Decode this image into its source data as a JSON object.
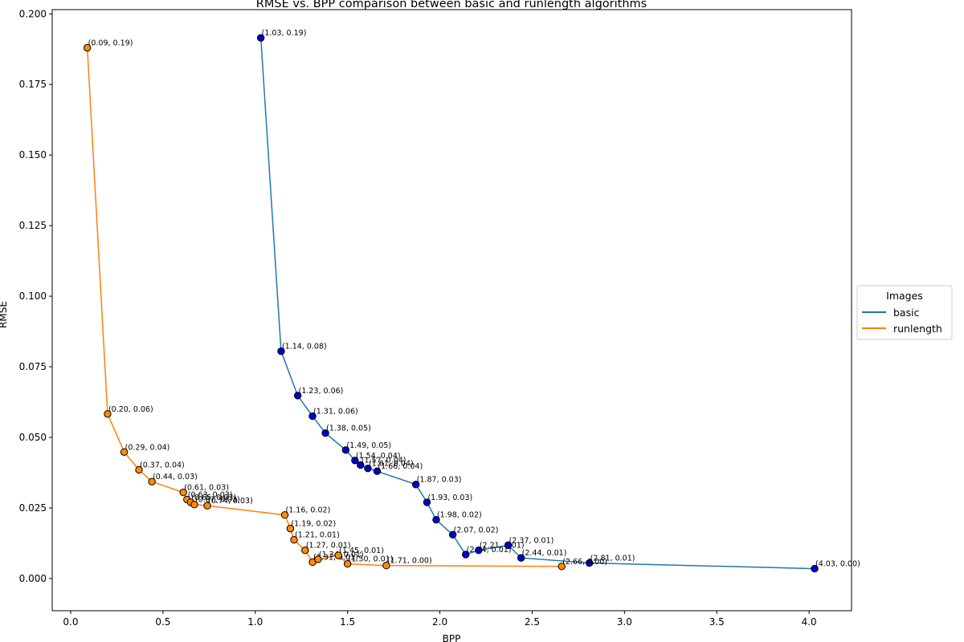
{
  "chart_data": {
    "type": "line",
    "title": "RMSE vs. BPP comparison between basic and runlength algorithms",
    "xlabel": "BPP",
    "ylabel": "RMSE",
    "xlim": [
      -0.1,
      4.23
    ],
    "ylim": [
      -0.0114,
      0.2015
    ],
    "xticks": [
      0.0,
      0.5,
      1.0,
      1.5,
      2.0,
      2.5,
      3.0,
      3.5,
      4.0
    ],
    "xtick_labels": [
      "0.0",
      "0.5",
      "1.0",
      "1.5",
      "2.0",
      "2.5",
      "3.0",
      "3.5",
      "4.0"
    ],
    "yticks": [
      0.0,
      0.025,
      0.05,
      0.075,
      0.1,
      0.125,
      0.15,
      0.175,
      0.2
    ],
    "ytick_labels": [
      "0.000",
      "0.025",
      "0.050",
      "0.075",
      "0.100",
      "0.125",
      "0.150",
      "0.175",
      "0.200"
    ],
    "grid": false,
    "legend": {
      "title": "Images",
      "placement": "center-right outside"
    },
    "series": [
      {
        "name": "basic",
        "color": "#1f77b4",
        "marker_color": "#0000cd",
        "points": [
          {
            "x": 1.03,
            "y": 0.1915,
            "label": "(1.03, 0.19)"
          },
          {
            "x": 1.14,
            "y": 0.0805,
            "label": "(1.14, 0.08)"
          },
          {
            "x": 1.23,
            "y": 0.0648,
            "label": "(1.23, 0.06)"
          },
          {
            "x": 1.31,
            "y": 0.0575,
            "label": "(1.31, 0.06)"
          },
          {
            "x": 1.38,
            "y": 0.0515,
            "label": "(1.38, 0.05)"
          },
          {
            "x": 1.49,
            "y": 0.0455,
            "label": "(1.49, 0.05)"
          },
          {
            "x": 1.54,
            "y": 0.0418,
            "label": "(1.54, 0.04)"
          },
          {
            "x": 1.57,
            "y": 0.0402,
            "label": "(1.57, 0.04)"
          },
          {
            "x": 1.61,
            "y": 0.039,
            "label": "(1.61, 0.04)"
          },
          {
            "x": 1.66,
            "y": 0.038,
            "label": "(1.66, 0.04)"
          },
          {
            "x": 1.87,
            "y": 0.0333,
            "label": "(1.87, 0.03)"
          },
          {
            "x": 1.93,
            "y": 0.027,
            "label": "(1.93, 0.03)"
          },
          {
            "x": 1.98,
            "y": 0.0208,
            "label": "(1.98, 0.02)"
          },
          {
            "x": 2.07,
            "y": 0.0155,
            "label": "(2.07, 0.02)"
          },
          {
            "x": 2.14,
            "y": 0.0085,
            "label": "(2.14, 0.01)"
          },
          {
            "x": 2.21,
            "y": 0.01,
            "label": "(2.21, 0.01)"
          },
          {
            "x": 2.37,
            "y": 0.0118,
            "label": "(2.37, 0.01)"
          },
          {
            "x": 2.44,
            "y": 0.0073,
            "label": "(2.44, 0.01)"
          },
          {
            "x": 2.81,
            "y": 0.0055,
            "label": "(2.81, 0.01)"
          },
          {
            "x": 4.03,
            "y": 0.0035,
            "label": "(4.03, 0.00)"
          }
        ]
      },
      {
        "name": "runlength",
        "color": "#ff7f0e",
        "marker_color": "#ff8c00",
        "points": [
          {
            "x": 0.09,
            "y": 0.188,
            "label": "(0.09, 0.19)"
          },
          {
            "x": 0.2,
            "y": 0.0583,
            "label": "(0.20, 0.06)"
          },
          {
            "x": 0.29,
            "y": 0.0448,
            "label": "(0.29, 0.04)"
          },
          {
            "x": 0.37,
            "y": 0.0385,
            "label": "(0.37, 0.04)"
          },
          {
            "x": 0.44,
            "y": 0.0343,
            "label": "(0.44, 0.03)"
          },
          {
            "x": 0.61,
            "y": 0.0305,
            "label": "(0.61, 0.03)"
          },
          {
            "x": 0.63,
            "y": 0.028,
            "label": "(0.63, 0.03)"
          },
          {
            "x": 0.65,
            "y": 0.027,
            "label": "(0.65, 0.03)"
          },
          {
            "x": 0.67,
            "y": 0.0262,
            "label": "(0.67, 0.03)"
          },
          {
            "x": 0.74,
            "y": 0.0258,
            "label": "(0.74, 0.03)"
          },
          {
            "x": 1.16,
            "y": 0.0225,
            "label": "(1.16, 0.02)"
          },
          {
            "x": 1.19,
            "y": 0.0177,
            "label": "(1.19, 0.02)"
          },
          {
            "x": 1.21,
            "y": 0.0137,
            "label": "(1.21, 0.01)"
          },
          {
            "x": 1.27,
            "y": 0.01,
            "label": "(1.27, 0.01)"
          },
          {
            "x": 1.31,
            "y": 0.0058,
            "label": "(1.31, 0.01)"
          },
          {
            "x": 1.34,
            "y": 0.0068,
            "label": "(1.34, 0.01)"
          },
          {
            "x": 1.45,
            "y": 0.0082,
            "label": "(1.45, 0.01)"
          },
          {
            "x": 1.5,
            "y": 0.0052,
            "label": "(1.50, 0.01)"
          },
          {
            "x": 1.71,
            "y": 0.0046,
            "label": "(1.71, 0.00)"
          },
          {
            "x": 2.66,
            "y": 0.0043,
            "label": "(2.66, 0.00)"
          }
        ]
      }
    ]
  }
}
